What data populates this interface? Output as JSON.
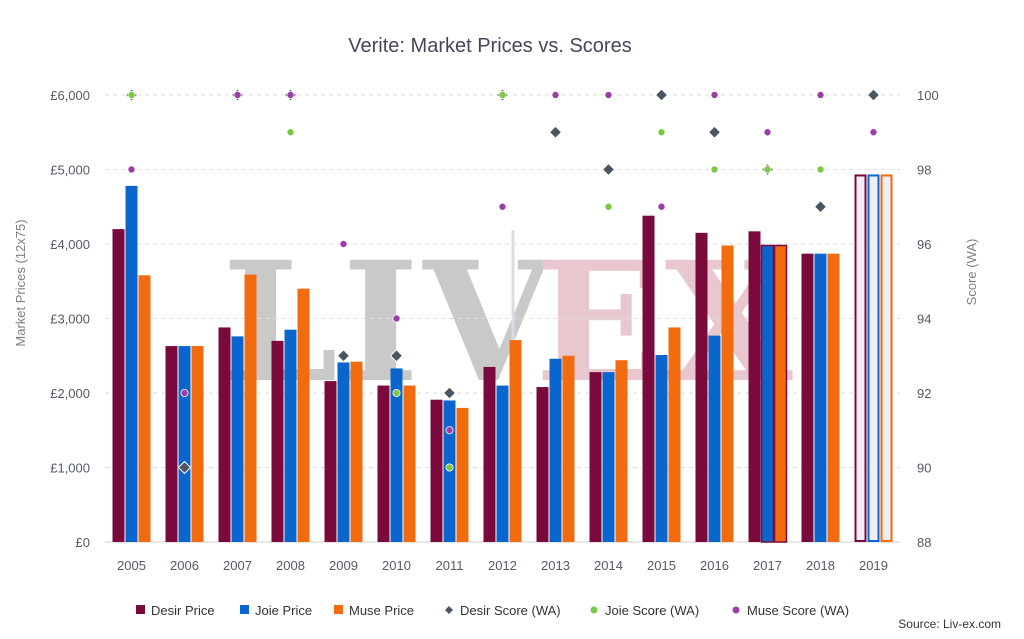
{
  "chart_data": {
    "type": "bar",
    "title": "Verite: Market Prices vs. Scores",
    "ylabel": "Market Prices (12x75)",
    "y2label": "Score (WA)",
    "source": "Source: Liv-ex.com",
    "watermark": "LIV-EX",
    "categories": [
      "2005",
      "2006",
      "2007",
      "2008",
      "2009",
      "2010",
      "2011",
      "2012",
      "2013",
      "2014",
      "2015",
      "2016",
      "2017",
      "2018",
      "2019"
    ],
    "ylim": [
      0,
      6000
    ],
    "y_ticks": [
      "£0",
      "£1,000",
      "£2,000",
      "£3,000",
      "£4,000",
      "£5,000",
      "£6,000"
    ],
    "y2lim": [
      88,
      100
    ],
    "y2_ticks": [
      "88",
      "90",
      "92",
      "94",
      "96",
      "98",
      "100"
    ],
    "grid": true,
    "legend_position": "bottom",
    "series": [
      {
        "name": "Desir Price",
        "kind": "bar",
        "color": "#7a0a3c",
        "values": [
          4200,
          2630,
          2880,
          2700,
          2160,
          2100,
          1910,
          2350,
          2080,
          2280,
          4380,
          4150,
          4170,
          3870,
          4920
        ]
      },
      {
        "name": "Joie Price",
        "kind": "bar",
        "color": "#0a66cc",
        "values": [
          4780,
          2630,
          2760,
          2850,
          2410,
          2330,
          1900,
          2100,
          2460,
          2280,
          2510,
          2770,
          3980,
          3870,
          4920
        ]
      },
      {
        "name": "Muse Price",
        "kind": "bar",
        "color": "#f26b0f",
        "values": [
          3580,
          2630,
          3590,
          3400,
          2420,
          2100,
          1800,
          2710,
          2500,
          2440,
          2880,
          3980,
          3980,
          3870,
          4920
        ]
      },
      {
        "name": "Desir Score (WA)",
        "kind": "diamond",
        "color": "#4a5563",
        "values": [
          100,
          90,
          100,
          100,
          93,
          93,
          92,
          100,
          99,
          98,
          100,
          99,
          98,
          97,
          100
        ]
      },
      {
        "name": "Joie Score (WA)",
        "kind": "dot",
        "color": "#7ac943",
        "values": [
          100,
          null,
          null,
          99,
          null,
          92,
          90,
          100,
          null,
          97,
          99,
          98,
          98,
          98,
          null
        ]
      },
      {
        "name": "Muse Score (WA)",
        "kind": "dot",
        "color": "#9b3fa6",
        "values": [
          98,
          92,
          100,
          100,
          96,
          94,
          91,
          97,
          100,
          100,
          97,
          100,
          99,
          100,
          99
        ]
      }
    ],
    "hollow_bar_categories": [
      "2019"
    ],
    "outlined_bar_categories": [
      "2017"
    ]
  }
}
